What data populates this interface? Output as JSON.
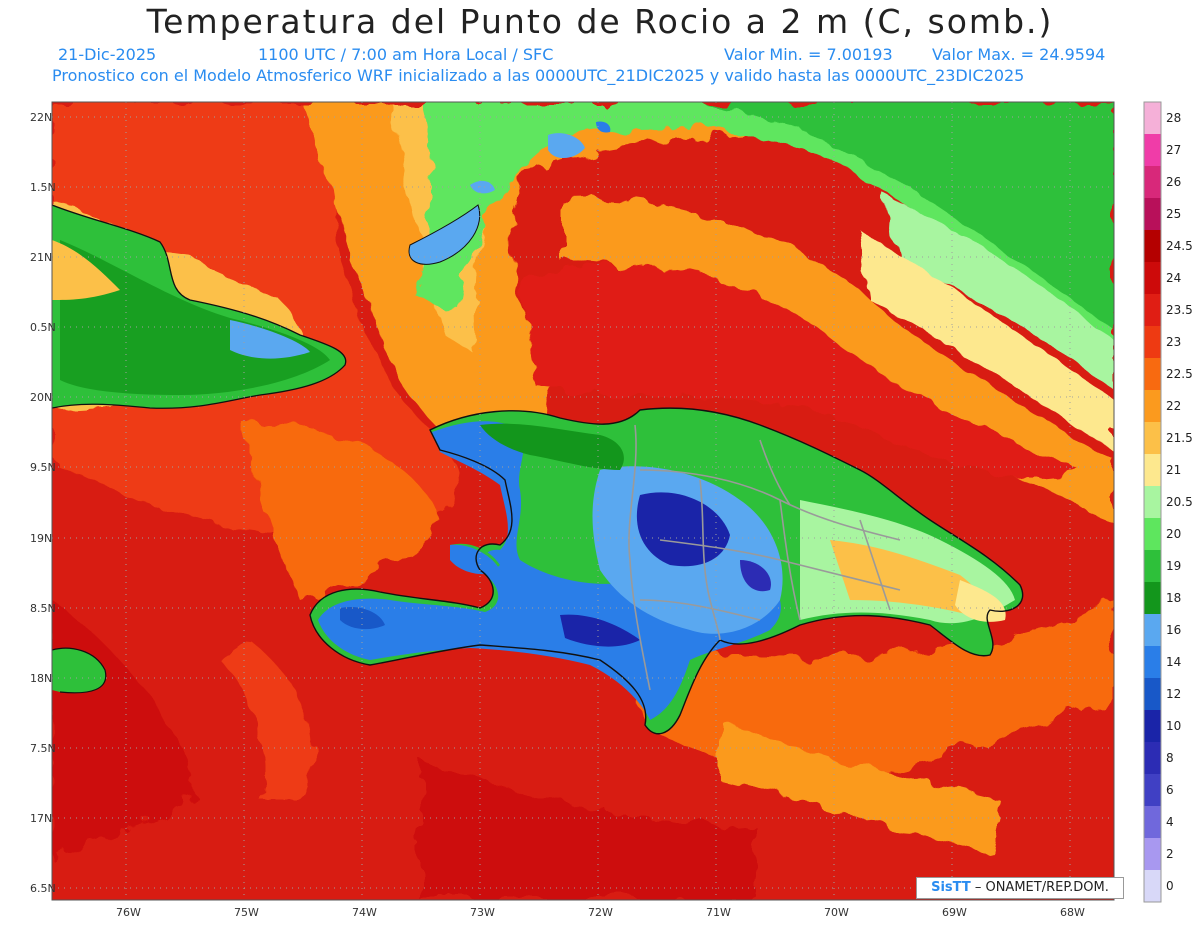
{
  "header": {
    "title": "Temperatura del Punto de Rocio a 2 m (C, somb.)",
    "date": "21-Dic-2025",
    "time": "1100 UTC / 7:00 am Hora Local / SFC",
    "min_label": "Valor Min. = 7.00193",
    "max_label": "Valor Max. = 24.9594",
    "model_line": "Pronostico con el Modelo Atmosferico WRF inicializado a las 0000UTC_21DIC2025 y valido hasta las  0000UTC_23DIC2025"
  },
  "axes": {
    "lat_labels": [
      "22N",
      "1.5N",
      "21N",
      "0.5N",
      "20N",
      "9.5N",
      "19N",
      "8.5N",
      "18N",
      "7.5N",
      "17N",
      "6.5N"
    ],
    "lon_labels": [
      "76W",
      "75W",
      "74W",
      "73W",
      "72W",
      "71W",
      "70W",
      "69W",
      "68W"
    ]
  },
  "colorbar": {
    "levels": [
      {
        "label": "28",
        "color": "#f5b0d8"
      },
      {
        "label": "27",
        "color": "#f03ca8"
      },
      {
        "label": "26",
        "color": "#d8287a"
      },
      {
        "label": "25",
        "color": "#b8105a"
      },
      {
        "label": "24.5",
        "color": "#b40000"
      },
      {
        "label": "24",
        "color": "#cd0a0a"
      },
      {
        "label": "23.5",
        "color": "#e01e14"
      },
      {
        "label": "23",
        "color": "#ee3a12"
      },
      {
        "label": "22.5",
        "color": "#f86a10"
      },
      {
        "label": "22",
        "color": "#fb9a1e"
      },
      {
        "label": "21.5",
        "color": "#fcc048"
      },
      {
        "label": "21",
        "color": "#fde88e"
      },
      {
        "label": "20.5",
        "color": "#a8f5a0"
      },
      {
        "label": "20",
        "color": "#5ee65e"
      },
      {
        "label": "19",
        "color": "#2ec03a"
      },
      {
        "label": "18",
        "color": "#13961c"
      },
      {
        "label": "16",
        "color": "#5aa8f0"
      },
      {
        "label": "14",
        "color": "#2a7ee8"
      },
      {
        "label": "12",
        "color": "#1858c8"
      },
      {
        "label": "10",
        "color": "#1a24a8"
      },
      {
        "label": "8",
        "color": "#2c2cb4"
      },
      {
        "label": "6",
        "color": "#4040c4"
      },
      {
        "label": "4",
        "color": "#7068dc"
      },
      {
        "label": "2",
        "color": "#a898f0"
      },
      {
        "label": "0",
        "color": "#d8d8f8"
      }
    ]
  },
  "credit": {
    "logo": "SisTT",
    "text": "– ONAMET/REP.DOM."
  }
}
